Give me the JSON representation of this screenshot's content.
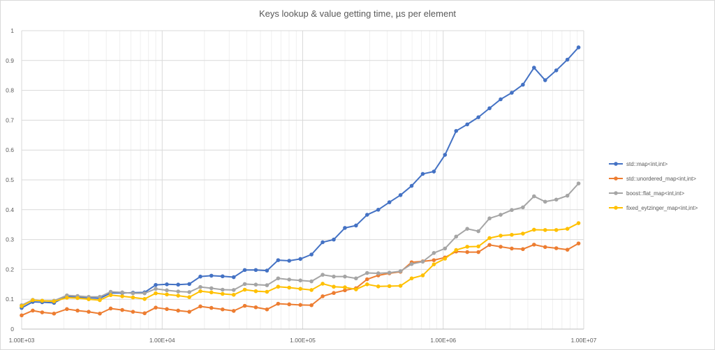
{
  "chart_data": {
    "type": "line",
    "title": "Keys lookup & value getting time, µs per element",
    "xlabel": "",
    "ylabel": "",
    "x_scale": "log",
    "xlim": [
      1000,
      10000000
    ],
    "ylim": [
      0,
      1
    ],
    "x_ticks": [
      1000,
      10000,
      100000,
      1000000,
      10000000
    ],
    "x_tick_labels": [
      "1.00E+03",
      "1.00E+04",
      "1.00E+05",
      "1.00E+06",
      "1.00E+07"
    ],
    "y_ticks": [
      0,
      0.1,
      0.2,
      0.3,
      0.4,
      0.5,
      0.6,
      0.7,
      0.8,
      0.9,
      1
    ],
    "y_tick_labels": [
      "0",
      "0.1",
      "0.2",
      "0.3",
      "0.4",
      "0.5",
      "0.6",
      "0.7",
      "0.8",
      "0.9",
      "1"
    ],
    "grid": true,
    "legend_position": "right",
    "x": [
      1000,
      1200,
      1400,
      1700,
      2100,
      2500,
      3000,
      3600,
      4300,
      5200,
      6200,
      7500,
      9000,
      10800,
      13000,
      15600,
      18700,
      22400,
      26900,
      32300,
      38700,
      46400,
      55700,
      66900,
      80200,
      96300,
      115500,
      138700,
      166400,
      199700,
      239600,
      287500,
      345000,
      414000,
      496700,
      596100,
      715300,
      858300,
      1030000,
      1236000,
      1483000,
      1780000,
      2136000,
      2563000,
      3076000,
      3691000,
      4429000,
      5315000,
      6378000,
      7654000,
      9184000
    ],
    "series": [
      {
        "name": "std::map<int,int>",
        "color": "#4472c4",
        "values": [
          0.071,
          0.091,
          0.09,
          0.088,
          0.11,
          0.107,
          0.105,
          0.103,
          0.121,
          0.121,
          0.122,
          0.123,
          0.148,
          0.15,
          0.149,
          0.151,
          0.176,
          0.179,
          0.177,
          0.174,
          0.198,
          0.198,
          0.196,
          0.231,
          0.229,
          0.235,
          0.25,
          0.291,
          0.3,
          0.339,
          0.347,
          0.383,
          0.4,
          0.425,
          0.449,
          0.48,
          0.52,
          0.528,
          0.584,
          0.664,
          0.686,
          0.71,
          0.74,
          0.77,
          0.792,
          0.819,
          0.876,
          0.834,
          0.867,
          0.903,
          0.944
        ]
      },
      {
        "name": "std::unordered_map<int,int>",
        "color": "#ed7d31",
        "values": [
          0.046,
          0.062,
          0.056,
          0.052,
          0.067,
          0.062,
          0.058,
          0.052,
          0.069,
          0.064,
          0.058,
          0.053,
          0.072,
          0.067,
          0.062,
          0.058,
          0.076,
          0.071,
          0.066,
          0.061,
          0.078,
          0.073,
          0.066,
          0.085,
          0.083,
          0.081,
          0.08,
          0.11,
          0.121,
          0.13,
          0.137,
          0.167,
          0.18,
          0.187,
          0.192,
          0.224,
          0.227,
          0.231,
          0.24,
          0.26,
          0.258,
          0.258,
          0.282,
          0.276,
          0.27,
          0.268,
          0.283,
          0.275,
          0.271,
          0.266,
          0.287
        ]
      },
      {
        "name": "boost::flat_map<int,int>",
        "color": "#a5a5a5",
        "values": [
          0.08,
          0.098,
          0.095,
          0.095,
          0.113,
          0.111,
          0.108,
          0.108,
          0.125,
          0.123,
          0.12,
          0.12,
          0.135,
          0.13,
          0.126,
          0.124,
          0.141,
          0.137,
          0.132,
          0.131,
          0.151,
          0.149,
          0.147,
          0.17,
          0.166,
          0.163,
          0.16,
          0.182,
          0.176,
          0.176,
          0.17,
          0.188,
          0.187,
          0.189,
          0.194,
          0.218,
          0.226,
          0.255,
          0.27,
          0.31,
          0.336,
          0.328,
          0.371,
          0.383,
          0.399,
          0.408,
          0.445,
          0.427,
          0.434,
          0.447,
          0.488
        ]
      },
      {
        "name": "fixed_eytzinger_map<int,int>",
        "color": "#ffc000",
        "values": [
          0.077,
          0.097,
          0.095,
          0.093,
          0.105,
          0.104,
          0.1,
          0.097,
          0.114,
          0.11,
          0.106,
          0.101,
          0.12,
          0.116,
          0.112,
          0.107,
          0.127,
          0.123,
          0.118,
          0.115,
          0.132,
          0.127,
          0.125,
          0.142,
          0.139,
          0.135,
          0.131,
          0.152,
          0.142,
          0.14,
          0.133,
          0.15,
          0.143,
          0.144,
          0.145,
          0.17,
          0.18,
          0.217,
          0.236,
          0.265,
          0.276,
          0.277,
          0.305,
          0.313,
          0.316,
          0.32,
          0.333,
          0.332,
          0.332,
          0.336,
          0.355
        ]
      }
    ]
  }
}
